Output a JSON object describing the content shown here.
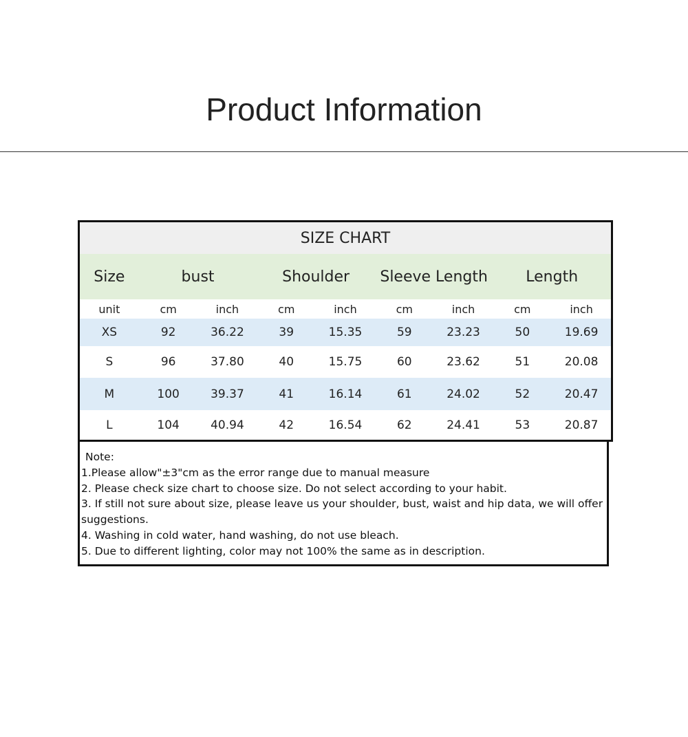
{
  "page_title": "Product Information",
  "size_chart": {
    "title": "SIZE CHART",
    "headers": [
      "Size",
      "bust",
      "Shoulder",
      "Sleeve Length",
      "Length"
    ],
    "units": [
      "unit",
      "cm",
      "inch",
      "cm",
      "inch",
      "cm",
      "inch",
      "cm",
      "inch"
    ],
    "rows": [
      [
        "XS",
        "92",
        "36.22",
        "39",
        "15.35",
        "59",
        "23.23",
        "50",
        "19.69"
      ],
      [
        "S",
        "96",
        "37.80",
        "40",
        "15.75",
        "60",
        "23.62",
        "51",
        "20.08"
      ],
      [
        "M",
        "100",
        "39.37",
        "41",
        "16.14",
        "61",
        "24.02",
        "52",
        "20.47"
      ],
      [
        "L",
        "104",
        "40.94",
        "42",
        "16.54",
        "62",
        "24.41",
        "53",
        "20.87"
      ]
    ],
    "colors": {
      "title_bg": "#efefef",
      "header_bg": "#e2efda",
      "stripe_bg": "#ddebf7"
    }
  },
  "notes": {
    "heading": "Note:",
    "lines": [
      "1.Please allow\"±3\"cm as the error range due to manual measure",
      "2. Please check size chart to choose size. Do not select according to your habit.",
      "3. If still not sure about size, please leave us your shoulder, bust, waist and hip data, we will offer",
      "suggestions.",
      "4. Washing in cold water, hand washing, do not use bleach.",
      "5. Due to different lighting, color may not 100% the same as in description."
    ]
  }
}
